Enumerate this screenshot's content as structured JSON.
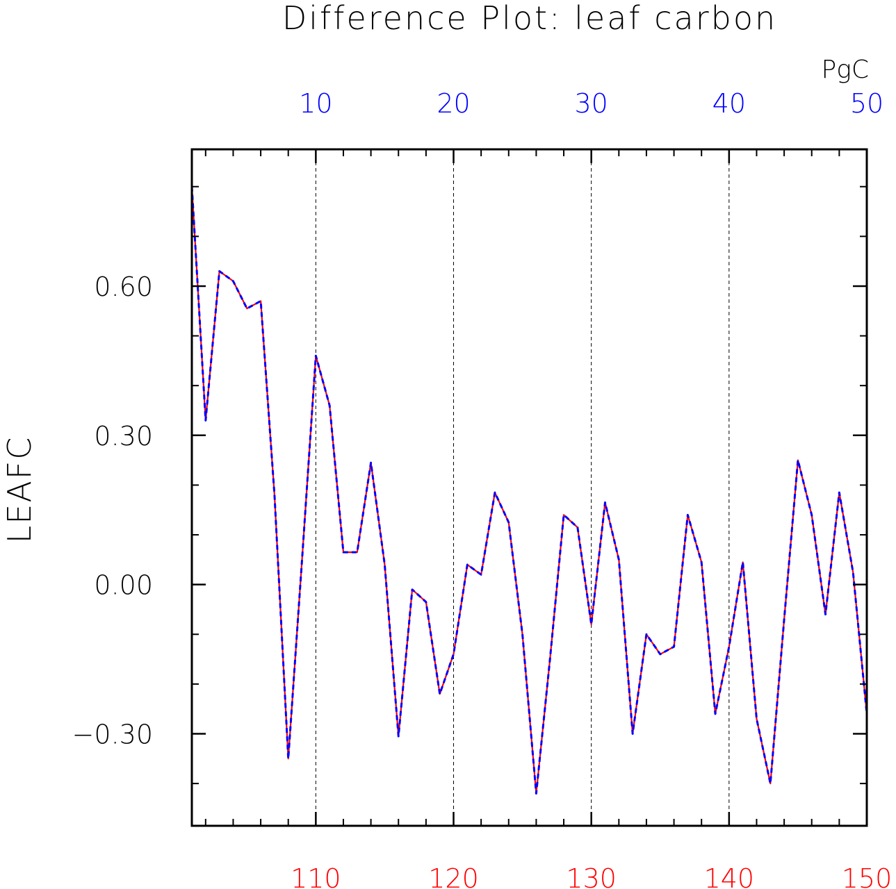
{
  "chart_data": {
    "type": "line",
    "title": "Difference Plot: leaf carbon",
    "ylabel": "LEAFC",
    "units": "PgC",
    "x_top": {
      "ticks": [
        10,
        20,
        30,
        40,
        50
      ],
      "tick_labels": [
        "10",
        "20",
        "30",
        "40",
        "50"
      ],
      "range": [
        1,
        50
      ],
      "color": "#0000ff"
    },
    "x_bottom": {
      "ticks": [
        110,
        120,
        130,
        140,
        150
      ],
      "tick_labels": [
        "110",
        "120",
        "130",
        "140",
        "150"
      ],
      "range": [
        101,
        150
      ],
      "color": "#ff0000"
    },
    "y": {
      "ticks": [
        -0.3,
        0,
        0.3,
        0.6
      ],
      "tick_labels": [
        "−0.30",
        "0.00",
        "0.30",
        "0.60"
      ],
      "range": [
        -0.485,
        0.875
      ]
    },
    "grid": "vertical dashed at major x ticks",
    "x": [
      1,
      2,
      3,
      4,
      5,
      6,
      7,
      8,
      9,
      10,
      11,
      12,
      13,
      14,
      15,
      16,
      17,
      18,
      19,
      20,
      21,
      22,
      23,
      24,
      25,
      26,
      27,
      28,
      29,
      30,
      31,
      32,
      33,
      34,
      35,
      36,
      37,
      38,
      39,
      40,
      41,
      42,
      43,
      44,
      45,
      46,
      47,
      48,
      49,
      50
    ],
    "series": [
      {
        "color": "#ff0000",
        "style": "solid",
        "values": [
          0.8,
          0.33,
          0.63,
          0.61,
          0.555,
          0.57,
          0.18,
          -0.35,
          0.05,
          0.46,
          0.36,
          0.065,
          0.065,
          0.245,
          0.04,
          -0.305,
          -0.01,
          -0.035,
          -0.22,
          -0.14,
          0.04,
          0.02,
          0.185,
          0.125,
          -0.1,
          -0.42,
          -0.15,
          0.14,
          0.115,
          -0.08,
          0.165,
          0.05,
          -0.3,
          -0.1,
          -0.14,
          -0.125,
          0.14,
          0.045,
          -0.26,
          -0.125,
          0.045,
          -0.27,
          -0.4,
          -0.07,
          0.25,
          0.14,
          -0.06,
          0.185,
          0.025,
          -0.26
        ]
      },
      {
        "color": "#0000ff",
        "style": "dashed",
        "values": [
          0.8,
          0.33,
          0.63,
          0.61,
          0.555,
          0.57,
          0.18,
          -0.35,
          0.05,
          0.46,
          0.36,
          0.065,
          0.065,
          0.245,
          0.04,
          -0.305,
          -0.01,
          -0.035,
          -0.22,
          -0.14,
          0.04,
          0.02,
          0.185,
          0.125,
          -0.1,
          -0.42,
          -0.15,
          0.14,
          0.115,
          -0.08,
          0.165,
          0.05,
          -0.3,
          -0.1,
          -0.14,
          -0.125,
          0.14,
          0.045,
          -0.26,
          -0.125,
          0.045,
          -0.27,
          -0.4,
          -0.07,
          0.25,
          0.14,
          -0.06,
          0.185,
          0.025,
          -0.26
        ]
      }
    ]
  }
}
